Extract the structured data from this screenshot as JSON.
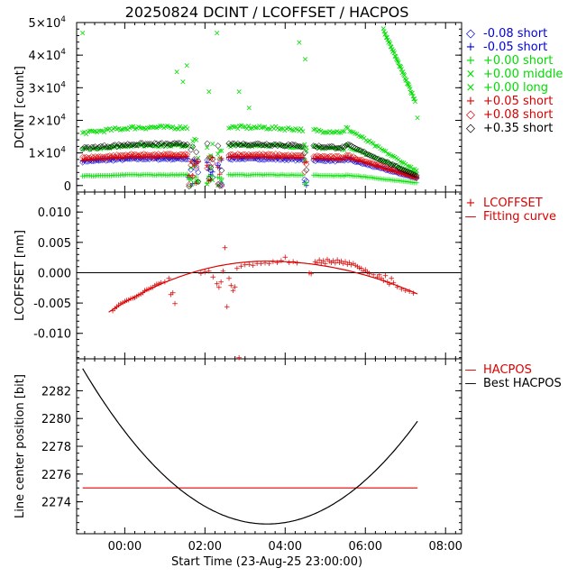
{
  "title": "20250824 DCINT / LCOFFSET / HACPOS",
  "x_label": "Start Time (23-Aug-25 23:00:00)",
  "x_ticks": [
    "00:00",
    "02:00",
    "04:00",
    "06:00",
    "08:00"
  ],
  "colors": {
    "black": "#000000",
    "blue": "#0000dd",
    "green": "#00dd00",
    "red": "#dd0000"
  },
  "chart_data": [
    {
      "type": "scatter",
      "panel": "dcint",
      "ylabel": "DCINT [count]",
      "xlim_hours": [
        -0.2,
        9.4
      ],
      "ylim": [
        -2000,
        50000
      ],
      "y_ticks": [
        {
          "value": 0,
          "base": "0",
          "exp": ""
        },
        {
          "value": 10000,
          "base": "1×10",
          "exp": "4"
        },
        {
          "value": 20000,
          "base": "2×10",
          "exp": "4"
        },
        {
          "value": 30000,
          "base": "3×10",
          "exp": "4"
        },
        {
          "value": 40000,
          "base": "4×10",
          "exp": "4"
        },
        {
          "value": 50000,
          "base": "5×10",
          "exp": "4"
        }
      ],
      "series": [
        {
          "name": "-0.08 short",
          "symbol": "◇",
          "color": "#0000dd",
          "level": 8500,
          "end": 2500
        },
        {
          "name": "-0.05 short",
          "symbol": "+",
          "color": "#0000dd",
          "level": 8800,
          "end": 2600
        },
        {
          "name": "+0.00 short",
          "symbol": "+",
          "color": "#00dd00",
          "level": 3500,
          "end": 1000
        },
        {
          "name": "+0.00 middle",
          "symbol": "×",
          "color": "#00dd00",
          "level": 18000,
          "end": 4500
        },
        {
          "name": "+0.00 long",
          "symbol": "×",
          "color": "#00dd00",
          "level": 12500,
          "end": 3500
        },
        {
          "name": "+0.05 short",
          "symbol": "+",
          "color": "#dd0000",
          "level": 9000,
          "end": 2400
        },
        {
          "name": "+0.08 short",
          "symbol": "◇",
          "color": "#dd0000",
          "level": 9800,
          "end": 2800
        },
        {
          "name": "+0.35 short",
          "symbol": "◇",
          "color": "#000000",
          "level": 13000,
          "end": 3300
        }
      ]
    },
    {
      "type": "scatter",
      "panel": "lcoffset",
      "ylabel": "LCOFFSET [nm]",
      "ylim": [
        -0.0142,
        0.0133
      ],
      "y_ticks": [
        {
          "value": 0.01,
          "label": "0.010"
        },
        {
          "value": 0.005,
          "label": "0.005"
        },
        {
          "value": 0.0,
          "label": "0.000"
        },
        {
          "value": -0.005,
          "label": "-0.005"
        },
        {
          "value": -0.01,
          "label": "-0.010"
        }
      ],
      "legend": [
        {
          "symbol": "+",
          "label": "LCOFFSET",
          "color": "#dd0000"
        },
        {
          "symbol": "—",
          "label": "Fitting curve",
          "color": "#dd0000"
        }
      ],
      "fit_curve": {
        "vertex_hour": 4.55,
        "vertex_value": 0.0019,
        "start_hour": 0.6,
        "start_value": -0.0065,
        "end_hour": 8.3,
        "end_value": -0.0035
      },
      "points": [
        [
          0.7,
          -0.0062
        ],
        [
          0.75,
          -0.0058
        ],
        [
          0.8,
          -0.0055
        ],
        [
          0.85,
          -0.0052
        ],
        [
          0.9,
          -0.005
        ],
        [
          0.95,
          -0.0048
        ],
        [
          1.0,
          -0.0046
        ],
        [
          1.05,
          -0.0045
        ],
        [
          1.1,
          -0.0044
        ],
        [
          1.15,
          -0.0042
        ],
        [
          1.2,
          -0.0041
        ],
        [
          1.25,
          -0.004
        ],
        [
          1.3,
          -0.0038
        ],
        [
          1.35,
          -0.0036
        ],
        [
          1.4,
          -0.0034
        ],
        [
          1.45,
          -0.0032
        ],
        [
          1.5,
          -0.0028
        ],
        [
          1.55,
          -0.0027
        ],
        [
          1.6,
          -0.0026
        ],
        [
          1.65,
          -0.0024
        ],
        [
          1.7,
          -0.0023
        ],
        [
          1.75,
          -0.002
        ],
        [
          1.8,
          -0.0018
        ],
        [
          1.85,
          -0.0017
        ],
        [
          1.9,
          -0.0016
        ],
        [
          2.0,
          -0.0014
        ],
        [
          2.1,
          -0.0008
        ],
        [
          2.15,
          -0.0035
        ],
        [
          2.2,
          -0.0032
        ],
        [
          2.25,
          -0.005
        ],
        [
          2.9,
          0.0
        ],
        [
          3.0,
          0.0002
        ],
        [
          3.1,
          0.0004
        ],
        [
          3.2,
          -0.0006
        ],
        [
          3.3,
          -0.0017
        ],
        [
          3.35,
          -0.0023
        ],
        [
          3.4,
          -0.0014
        ],
        [
          3.45,
          0.0004
        ],
        [
          3.5,
          0.0042
        ],
        [
          3.55,
          -0.0055
        ],
        [
          3.6,
          -0.0008
        ],
        [
          3.65,
          -0.002
        ],
        [
          3.7,
          -0.0028
        ],
        [
          3.75,
          -0.0022
        ],
        [
          3.8,
          0.0008
        ],
        [
          3.85,
          -0.0139
        ],
        [
          3.9,
          0.0012
        ],
        [
          4.0,
          0.0014
        ],
        [
          4.1,
          0.0015
        ],
        [
          4.2,
          0.0013
        ],
        [
          4.3,
          0.0016
        ],
        [
          4.4,
          0.0016
        ],
        [
          4.5,
          0.0017
        ],
        [
          4.6,
          0.0016
        ],
        [
          4.7,
          0.0019
        ],
        [
          4.8,
          0.0018
        ],
        [
          4.9,
          0.0021
        ],
        [
          5.0,
          0.0027
        ],
        [
          5.1,
          0.0018
        ],
        [
          5.2,
          0.0019
        ],
        [
          5.3,
          0.0017
        ],
        [
          5.6,
          0.0001
        ],
        [
          5.65,
          -0.0001
        ],
        [
          5.75,
          0.0019
        ],
        [
          5.8,
          0.0017
        ],
        [
          5.85,
          0.0022
        ],
        [
          5.9,
          0.0017
        ],
        [
          5.95,
          0.0021
        ],
        [
          6.0,
          0.0016
        ],
        [
          6.05,
          0.0023
        ],
        [
          6.1,
          0.002
        ],
        [
          6.15,
          0.0018
        ],
        [
          6.2,
          0.0021
        ],
        [
          6.25,
          0.0017
        ],
        [
          6.3,
          0.0022
        ],
        [
          6.35,
          0.0018
        ],
        [
          6.4,
          0.002
        ],
        [
          6.45,
          0.0016
        ],
        [
          6.5,
          0.0019
        ],
        [
          6.55,
          0.0015
        ],
        [
          6.6,
          0.0018
        ],
        [
          6.65,
          0.0014
        ],
        [
          6.7,
          0.0016
        ],
        [
          6.75,
          0.0013
        ],
        [
          6.8,
          0.0011
        ],
        [
          6.85,
          0.0009
        ],
        [
          6.9,
          0.0008
        ],
        [
          6.95,
          0.0004
        ],
        [
          7.0,
          0.0006
        ],
        [
          7.05,
          0.0002
        ],
        [
          7.1,
          0.0
        ],
        [
          7.2,
          -0.0002
        ],
        [
          7.3,
          -0.0006
        ],
        [
          7.35,
          -0.0002
        ],
        [
          7.4,
          -0.0008
        ],
        [
          7.45,
          -0.0012
        ],
        [
          7.5,
          -0.0004
        ],
        [
          7.55,
          -0.0014
        ],
        [
          7.6,
          -0.0018
        ],
        [
          7.65,
          -0.0008
        ],
        [
          7.7,
          -0.0016
        ],
        [
          7.8,
          -0.0022
        ],
        [
          7.9,
          -0.0026
        ],
        [
          8.0,
          -0.0028
        ],
        [
          8.1,
          -0.003
        ],
        [
          8.2,
          -0.0033
        ]
      ]
    },
    {
      "type": "line",
      "panel": "hacpos",
      "ylabel": "Line center position [bit]",
      "ylim": [
        2271.7,
        2284.3
      ],
      "y_ticks": [
        {
          "value": 2274,
          "label": "2274"
        },
        {
          "value": 2276,
          "label": "2276"
        },
        {
          "value": 2278,
          "label": "2278"
        },
        {
          "value": 2280,
          "label": "2280"
        },
        {
          "value": 2282,
          "label": "2282"
        }
      ],
      "hacpos_value": 2275.0,
      "best_curve": {
        "vertex_hour": 4.55,
        "vertex_value": 2272.4,
        "start_hour": -0.05,
        "start_value": 2283.6,
        "end_hour": 8.3,
        "end_value": 2279.8
      },
      "legend": [
        {
          "symbol": "—",
          "label": "HACPOS",
          "color": "#dd0000"
        },
        {
          "symbol": "—",
          "label": "Best HACPOS",
          "color": "#000000"
        }
      ]
    }
  ]
}
